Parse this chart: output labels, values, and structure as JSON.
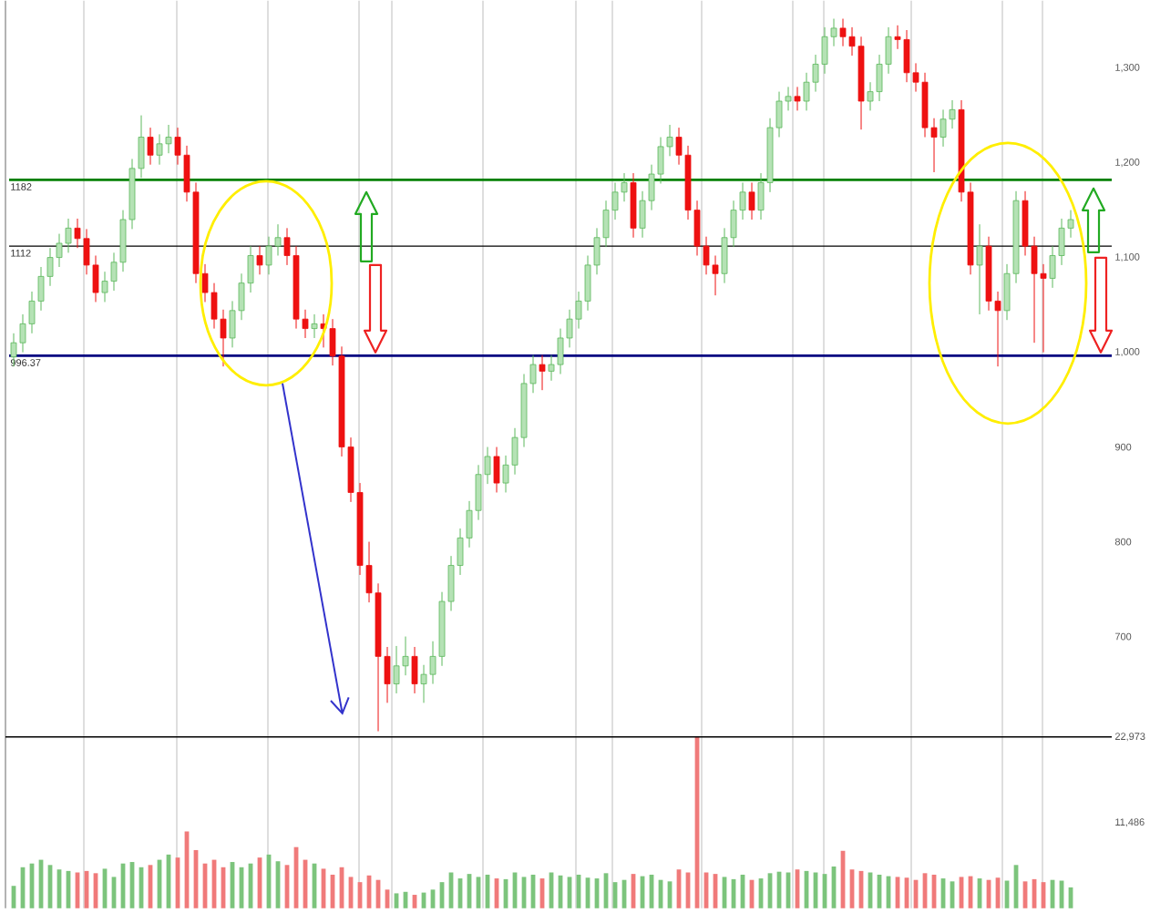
{
  "chart_data": [
    {
      "type": "candlestick",
      "categories": [
        null,
        null,
        null,
        null,
        null,
        null,
        null,
        null,
        null,
        null,
        null,
        null,
        null,
        null,
        null,
        null,
        null,
        null,
        null,
        null,
        null,
        null,
        null,
        null,
        null,
        null,
        null,
        null,
        null,
        null,
        null,
        null,
        null,
        null,
        null,
        null,
        null,
        null,
        null,
        null,
        null,
        null,
        null,
        null,
        null,
        null,
        null,
        null,
        null,
        null,
        null,
        null,
        null,
        null,
        null,
        null,
        null,
        null,
        null,
        null,
        null,
        null,
        null,
        null,
        null,
        null,
        null,
        null,
        null,
        null,
        null,
        null,
        null,
        null,
        null,
        null,
        null,
        null,
        null,
        null,
        null,
        null,
        null,
        null,
        null,
        null,
        null,
        null,
        null,
        null,
        null,
        null,
        null,
        null,
        null,
        null,
        null,
        null,
        null,
        null,
        null,
        null,
        null,
        null,
        null,
        null,
        null,
        null,
        null,
        null,
        null,
        null,
        null,
        null,
        null,
        null,
        null
      ],
      "ohlc": [
        [
          995,
          1020,
          985,
          1010
        ],
        [
          1010,
          1040,
          1000,
          1030
        ],
        [
          1030,
          1064,
          1020,
          1054
        ],
        [
          1054,
          1090,
          1044,
          1080
        ],
        [
          1080,
          1110,
          1070,
          1100
        ],
        [
          1100,
          1125,
          1090,
          1115
        ],
        [
          1115,
          1141,
          1105,
          1131
        ],
        [
          1131,
          1141,
          1110,
          1120
        ],
        [
          1120,
          1130,
          1082,
          1092
        ],
        [
          1092,
          1102,
          1053,
          1063
        ],
        [
          1063,
          1085,
          1053,
          1075
        ],
        [
          1075,
          1105,
          1065,
          1095
        ],
        [
          1095,
          1150,
          1085,
          1140
        ],
        [
          1140,
          1204,
          1130,
          1194
        ],
        [
          1194,
          1250,
          1184,
          1227
        ],
        [
          1227,
          1237,
          1198,
          1208
        ],
        [
          1208,
          1230,
          1198,
          1220
        ],
        [
          1220,
          1240,
          1210,
          1227
        ],
        [
          1227,
          1237,
          1198,
          1208
        ],
        [
          1208,
          1218,
          1159,
          1169
        ],
        [
          1169,
          1179,
          1073,
          1083
        ],
        [
          1083,
          1093,
          1053,
          1063
        ],
        [
          1063,
          1073,
          1025,
          1035
        ],
        [
          1035,
          1045,
          985,
          1015
        ],
        [
          1015,
          1054,
          1005,
          1044
        ],
        [
          1044,
          1083,
          1034,
          1073
        ],
        [
          1073,
          1112,
          1063,
          1102
        ],
        [
          1102,
          1112,
          1082,
          1092
        ],
        [
          1092,
          1122,
          1082,
          1112
        ],
        [
          1112,
          1135,
          1102,
          1121
        ],
        [
          1121,
          1131,
          1092,
          1102
        ],
        [
          1102,
          1112,
          1025,
          1035
        ],
        [
          1035,
          1045,
          1015,
          1025
        ],
        [
          1025,
          1040,
          1015,
          1030
        ],
        [
          1030,
          1040,
          1005,
          1025
        ],
        [
          1025,
          1035,
          986,
          996
        ],
        [
          996,
          1006,
          890,
          900
        ],
        [
          900,
          910,
          842,
          852
        ],
        [
          852,
          862,
          765,
          775
        ],
        [
          775,
          800,
          736,
          746
        ],
        [
          746,
          756,
          600,
          679
        ],
        [
          679,
          689,
          630,
          650
        ],
        [
          650,
          690,
          640,
          669
        ],
        [
          669,
          700,
          659,
          679
        ],
        [
          679,
          689,
          640,
          650
        ],
        [
          650,
          670,
          630,
          660
        ],
        [
          660,
          695,
          650,
          679
        ],
        [
          679,
          747,
          669,
          737
        ],
        [
          737,
          785,
          727,
          775
        ],
        [
          775,
          814,
          765,
          804
        ],
        [
          804,
          843,
          794,
          833
        ],
        [
          833,
          881,
          823,
          871
        ],
        [
          871,
          900,
          861,
          890
        ],
        [
          890,
          900,
          852,
          862
        ],
        [
          862,
          891,
          852,
          881
        ],
        [
          881,
          920,
          871,
          910
        ],
        [
          910,
          977,
          900,
          967
        ],
        [
          967,
          997,
          957,
          987
        ],
        [
          987,
          997,
          960,
          980
        ],
        [
          980,
          997,
          970,
          987
        ],
        [
          987,
          1025,
          977,
          1015
        ],
        [
          1015,
          1045,
          1005,
          1035
        ],
        [
          1035,
          1064,
          1025,
          1054
        ],
        [
          1054,
          1102,
          1044,
          1092
        ],
        [
          1092,
          1131,
          1082,
          1121
        ],
        [
          1121,
          1160,
          1111,
          1150
        ],
        [
          1150,
          1179,
          1140,
          1169
        ],
        [
          1169,
          1189,
          1159,
          1179
        ],
        [
          1179,
          1189,
          1121,
          1131
        ],
        [
          1131,
          1170,
          1121,
          1160
        ],
        [
          1160,
          1198,
          1150,
          1188
        ],
        [
          1188,
          1227,
          1178,
          1217
        ],
        [
          1217,
          1240,
          1207,
          1227
        ],
        [
          1227,
          1237,
          1198,
          1208
        ],
        [
          1208,
          1218,
          1140,
          1150
        ],
        [
          1150,
          1160,
          1102,
          1112
        ],
        [
          1112,
          1122,
          1082,
          1092
        ],
        [
          1092,
          1102,
          1060,
          1083
        ],
        [
          1083,
          1131,
          1073,
          1121
        ],
        [
          1121,
          1160,
          1111,
          1150
        ],
        [
          1150,
          1179,
          1140,
          1169
        ],
        [
          1169,
          1179,
          1140,
          1150
        ],
        [
          1150,
          1189,
          1140,
          1179
        ],
        [
          1179,
          1247,
          1169,
          1237
        ],
        [
          1237,
          1275,
          1227,
          1265
        ],
        [
          1265,
          1280,
          1255,
          1270
        ],
        [
          1270,
          1280,
          1255,
          1265
        ],
        [
          1265,
          1295,
          1255,
          1285
        ],
        [
          1285,
          1314,
          1275,
          1304
        ],
        [
          1304,
          1343,
          1294,
          1333
        ],
        [
          1333,
          1352,
          1323,
          1342
        ],
        [
          1342,
          1352,
          1323,
          1333
        ],
        [
          1333,
          1343,
          1313,
          1323
        ],
        [
          1323,
          1333,
          1235,
          1265
        ],
        [
          1265,
          1285,
          1255,
          1275
        ],
        [
          1275,
          1314,
          1265,
          1304
        ],
        [
          1304,
          1343,
          1294,
          1333
        ],
        [
          1333,
          1345,
          1320,
          1330
        ],
        [
          1330,
          1340,
          1285,
          1295
        ],
        [
          1295,
          1305,
          1275,
          1285
        ],
        [
          1285,
          1295,
          1227,
          1237
        ],
        [
          1237,
          1247,
          1190,
          1227
        ],
        [
          1227,
          1256,
          1217,
          1246
        ],
        [
          1246,
          1266,
          1236,
          1256
        ],
        [
          1256,
          1266,
          1159,
          1169
        ],
        [
          1169,
          1179,
          1082,
          1092
        ],
        [
          1092,
          1135,
          1040,
          1112
        ],
        [
          1112,
          1122,
          1044,
          1054
        ],
        [
          1054,
          1064,
          985,
          1044
        ],
        [
          1044,
          1093,
          1034,
          1083
        ],
        [
          1083,
          1170,
          1073,
          1160
        ],
        [
          1160,
          1170,
          1102,
          1112
        ],
        [
          1112,
          1122,
          1010,
          1083
        ],
        [
          1083,
          1093,
          1000,
          1078
        ],
        [
          1078,
          1112,
          1068,
          1102
        ],
        [
          1102,
          1141,
          1092,
          1131
        ],
        [
          1131,
          1150,
          1121,
          1140
        ]
      ],
      "ylim": [
        594,
        1371
      ],
      "yticks": [
        700,
        800,
        900,
        {
          "value": 1000,
          "label": "1,000"
        },
        {
          "value": 1100,
          "label": "1,100"
        },
        {
          "value": 1200,
          "label": "1,200"
        },
        {
          "value": 1300,
          "label": "1,300"
        }
      ],
      "tick_labels": "y",
      "ref_lines": [
        {
          "axis": "y",
          "value": 1182,
          "label": "1182",
          "color": "#008000"
        },
        {
          "axis": "y",
          "value": 1112,
          "label": "1112",
          "color": "#000000"
        },
        {
          "axis": "y",
          "value": 996.37,
          "label": "996.37",
          "color": "#000080"
        }
      ]
    },
    {
      "type": "bar",
      "categories": [
        null,
        null,
        null,
        null,
        null,
        null,
        null,
        null,
        null,
        null,
        null,
        null,
        null,
        null,
        null,
        null,
        null,
        null,
        null,
        null,
        null,
        null,
        null,
        null,
        null,
        null,
        null,
        null,
        null,
        null,
        null,
        null,
        null,
        null,
        null,
        null,
        null,
        null,
        null,
        null,
        null,
        null,
        null,
        null,
        null,
        null,
        null,
        null,
        null,
        null,
        null,
        null,
        null,
        null,
        null,
        null,
        null,
        null,
        null,
        null,
        null,
        null,
        null,
        null,
        null,
        null,
        null,
        null,
        null,
        null,
        null,
        null,
        null,
        null,
        null,
        null,
        null,
        null,
        null,
        null,
        null,
        null,
        null,
        null,
        null,
        null,
        null,
        null,
        null,
        null,
        null,
        null,
        null,
        null,
        null,
        null,
        null,
        null,
        null,
        null,
        null,
        null,
        null,
        null,
        null,
        null,
        null,
        null,
        null,
        null,
        null,
        null,
        null,
        null,
        null,
        null,
        null
      ],
      "values": [
        3000,
        5500,
        6000,
        6500,
        5800,
        5200,
        5000,
        4800,
        5000,
        4700,
        5300,
        4200,
        6000,
        6200,
        5500,
        5800,
        6500,
        7200,
        6800,
        10300,
        7800,
        6000,
        6500,
        5500,
        6200,
        5500,
        6000,
        6800,
        7200,
        6300,
        5800,
        8200,
        6500,
        6000,
        5300,
        4500,
        5500,
        4200,
        3500,
        4400,
        3800,
        2500,
        2000,
        2200,
        1800,
        2100,
        2500,
        3500,
        4800,
        4000,
        4600,
        4200,
        4500,
        4000,
        3900,
        4800,
        4200,
        4500,
        4000,
        4800,
        4400,
        4200,
        4500,
        4100,
        4000,
        4700,
        3500,
        3800,
        4600,
        4300,
        4500,
        3800,
        3600,
        5200,
        4800,
        22973,
        4800,
        4600,
        4200,
        3900,
        4500,
        3800,
        4000,
        4700,
        4900,
        4800,
        5200,
        5000,
        4800,
        4600,
        5600,
        7700,
        5200,
        5000,
        4800,
        4500,
        4300,
        4200,
        4100,
        3800,
        4700,
        4500,
        4000,
        3600,
        4200,
        4300,
        4000,
        3800,
        4100,
        3700,
        5800,
        3600,
        3900,
        3500,
        3800,
        3700,
        2800
      ],
      "colors": [
        "#7cc47c",
        "#7cc47c",
        "#7cc47c",
        "#7cc47c",
        "#7cc47c",
        "#7cc47c",
        "#7cc47c",
        "#f07a7a",
        "#f07a7a",
        "#f07a7a",
        "#7cc47c",
        "#7cc47c",
        "#7cc47c",
        "#7cc47c",
        "#7cc47c",
        "#f07a7a",
        "#7cc47c",
        "#7cc47c",
        "#f07a7a",
        "#f07a7a",
        "#f07a7a",
        "#f07a7a",
        "#f07a7a",
        "#f07a7a",
        "#7cc47c",
        "#7cc47c",
        "#7cc47c",
        "#f07a7a",
        "#7cc47c",
        "#7cc47c",
        "#f07a7a",
        "#f07a7a",
        "#f07a7a",
        "#7cc47c",
        "#f07a7a",
        "#f07a7a",
        "#f07a7a",
        "#f07a7a",
        "#f07a7a",
        "#f07a7a",
        "#f07a7a",
        "#f07a7a",
        "#7cc47c",
        "#7cc47c",
        "#f07a7a",
        "#7cc47c",
        "#7cc47c",
        "#7cc47c",
        "#7cc47c",
        "#7cc47c",
        "#7cc47c",
        "#7cc47c",
        "#7cc47c",
        "#f07a7a",
        "#7cc47c",
        "#7cc47c",
        "#7cc47c",
        "#7cc47c",
        "#f07a7a",
        "#7cc47c",
        "#7cc47c",
        "#7cc47c",
        "#7cc47c",
        "#7cc47c",
        "#7cc47c",
        "#7cc47c",
        "#7cc47c",
        "#7cc47c",
        "#f07a7a",
        "#7cc47c",
        "#7cc47c",
        "#7cc47c",
        "#7cc47c",
        "#f07a7a",
        "#f07a7a",
        "#f07a7a",
        "#f07a7a",
        "#f07a7a",
        "#7cc47c",
        "#7cc47c",
        "#7cc47c",
        "#f07a7a",
        "#7cc47c",
        "#7cc47c",
        "#7cc47c",
        "#7cc47c",
        "#f07a7a",
        "#7cc47c",
        "#7cc47c",
        "#7cc47c",
        "#7cc47c",
        "#f07a7a",
        "#f07a7a",
        "#f07a7a",
        "#7cc47c",
        "#7cc47c",
        "#7cc47c",
        "#f07a7a",
        "#f07a7a",
        "#f07a7a",
        "#f07a7a",
        "#f07a7a",
        "#7cc47c",
        "#7cc47c",
        "#f07a7a",
        "#f07a7a",
        "#7cc47c",
        "#f07a7a",
        "#f07a7a",
        "#7cc47c",
        "#7cc47c",
        "#f07a7a",
        "#f07a7a",
        "#f07a7a",
        "#7cc47c",
        "#7cc47c",
        "#7cc47c"
      ],
      "ylim": [
        0,
        22973
      ],
      "yticks": [
        {
          "value": 11486,
          "label": "11,486"
        },
        {
          "value": 22973,
          "label": "22,973"
        }
      ],
      "tick_labels": "y"
    }
  ]
}
